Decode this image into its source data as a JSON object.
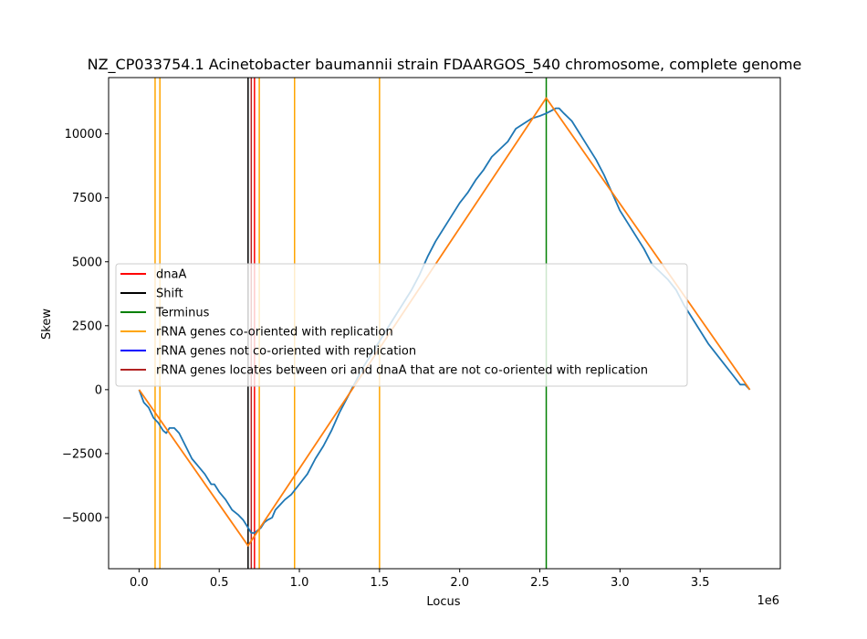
{
  "chart_data": {
    "type": "line",
    "title": "NZ_CP033754.1 Acinetobacter baumannii strain FDAARGOS_540 chromosome, complete genome",
    "xlabel": "Locus",
    "ylabel": "Skew",
    "x_offset_label": "1e6",
    "xlim": [
      -190000,
      4000000
    ],
    "ylim": [
      -7000,
      12200
    ],
    "xticks": [
      0,
      500000,
      1000000,
      1500000,
      2000000,
      2500000,
      3000000,
      3500000
    ],
    "xtick_labels": [
      "0.0",
      "0.5",
      "1.0",
      "1.5",
      "2.0",
      "2.5",
      "3.0",
      "3.5"
    ],
    "yticks": [
      -5000,
      -2500,
      0,
      2500,
      5000,
      7500,
      10000
    ],
    "ytick_labels": [
      "−5000",
      "−2500",
      "0",
      "2500",
      "5000",
      "7500",
      "10000"
    ],
    "grid": false,
    "legend_placement": "center-left",
    "series": [
      {
        "name": "skew",
        "color": "#1f77b4",
        "x": [
          0,
          30000,
          60000,
          90000,
          120000,
          150000,
          170000,
          190000,
          220000,
          250000,
          290000,
          330000,
          370000,
          410000,
          450000,
          470000,
          500000,
          540000,
          580000,
          620000,
          650000,
          670000,
          690000,
          700000,
          720000,
          740000,
          760000,
          780000,
          800000,
          830000,
          850000,
          880000,
          910000,
          950000,
          1000000,
          1050000,
          1100000,
          1150000,
          1200000,
          1250000,
          1300000,
          1350000,
          1400000,
          1450000,
          1500000,
          1550000,
          1600000,
          1650000,
          1700000,
          1750000,
          1800000,
          1850000,
          1900000,
          1950000,
          2000000,
          2050000,
          2100000,
          2150000,
          2200000,
          2250000,
          2300000,
          2350000,
          2400000,
          2450000,
          2500000,
          2540000,
          2570000,
          2600000,
          2620000,
          2650000,
          2700000,
          2750000,
          2800000,
          2850000,
          2900000,
          2950000,
          3000000,
          3050000,
          3100000,
          3150000,
          3200000,
          3250000,
          3300000,
          3350000,
          3400000,
          3450000,
          3500000,
          3550000,
          3600000,
          3650000,
          3700000,
          3750000,
          3780000,
          3810000
        ],
        "y": [
          0,
          -500,
          -700,
          -1100,
          -1300,
          -1600,
          -1700,
          -1500,
          -1500,
          -1700,
          -2200,
          -2700,
          -3000,
          -3300,
          -3700,
          -3700,
          -4000,
          -4300,
          -4700,
          -4900,
          -5100,
          -5300,
          -5500,
          -5600,
          -5600,
          -5500,
          -5400,
          -5200,
          -5100,
          -5000,
          -4700,
          -4500,
          -4300,
          -4100,
          -3700,
          -3300,
          -2700,
          -2200,
          -1600,
          -900,
          -300,
          300,
          900,
          1400,
          1900,
          2400,
          2900,
          3400,
          3900,
          4500,
          5200,
          5800,
          6300,
          6800,
          7300,
          7700,
          8200,
          8600,
          9100,
          9400,
          9700,
          10200,
          10400,
          10600,
          10700,
          10800,
          10900,
          11000,
          11000,
          10800,
          10500,
          10000,
          9500,
          9000,
          8400,
          7700,
          7000,
          6500,
          6000,
          5500,
          4900,
          4600,
          4300,
          3900,
          3300,
          2800,
          2300,
          1800,
          1400,
          1000,
          600,
          200,
          200,
          0
        ]
      },
      {
        "name": "",
        "color": "#ff7f0e",
        "x": [
          0,
          680000,
          2540000,
          3810000
        ],
        "y": [
          0,
          -6100,
          11400,
          0
        ]
      }
    ],
    "vlines": [
      {
        "name": "dnaA",
        "x": 720000,
        "color": "#ff0000"
      },
      {
        "name": "Shift",
        "x": 680000,
        "color": "#000000"
      },
      {
        "name": "Terminus",
        "x": 2540000,
        "color": "#008000"
      },
      {
        "name": "rRNA genes co-oriented with replication",
        "x": 100000,
        "color": "#ffa500"
      },
      {
        "name": "rRNA genes co-oriented with replication",
        "x": 130000,
        "color": "#ffa500"
      },
      {
        "name": "rRNA genes co-oriented with replication",
        "x": 750000,
        "color": "#ffa500"
      },
      {
        "name": "rRNA genes co-oriented with replication",
        "x": 970000,
        "color": "#ffa500"
      },
      {
        "name": "rRNA genes co-oriented with replication",
        "x": 1500000,
        "color": "#ffa500"
      },
      {
        "name": "rRNA genes locates between ori and dnaA that are not co-oriented with replication",
        "x": 700000,
        "color": "#b22222"
      }
    ],
    "legend": [
      {
        "label": "dnaA",
        "color": "#ff0000"
      },
      {
        "label": "Shift",
        "color": "#000000"
      },
      {
        "label": "Terminus",
        "color": "#008000"
      },
      {
        "label": "rRNA genes co-oriented with replication",
        "color": "#ffa500"
      },
      {
        "label": "rRNA genes not co-oriented with replication",
        "color": "#0000ff"
      },
      {
        "label": "rRNA genes locates between ori and dnaA that are not co-oriented with replication",
        "color": "#b22222"
      }
    ]
  }
}
